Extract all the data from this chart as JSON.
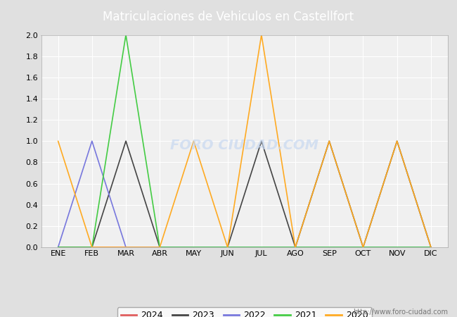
{
  "title": "Matriculaciones de Vehiculos en Castellfort",
  "months": [
    "ENE",
    "FEB",
    "MAR",
    "ABR",
    "MAY",
    "JUN",
    "JUL",
    "AGO",
    "SEP",
    "OCT",
    "NOV",
    "DIC"
  ],
  "series": {
    "2024": {
      "values": [
        0,
        0,
        0,
        0,
        0,
        null,
        null,
        null,
        null,
        null,
        null,
        null
      ],
      "color": "#e05c5c",
      "linewidth": 1.2
    },
    "2023": {
      "values": [
        0,
        0,
        1,
        0,
        0,
        0,
        1,
        0,
        1,
        0,
        1,
        0
      ],
      "color": "#444444",
      "linewidth": 1.2
    },
    "2022": {
      "values": [
        0,
        1,
        0,
        0,
        0,
        0,
        0,
        0,
        0,
        0,
        0,
        0
      ],
      "color": "#7777dd",
      "linewidth": 1.2
    },
    "2021": {
      "values": [
        0,
        0,
        2,
        0,
        0,
        0,
        0,
        0,
        0,
        0,
        0,
        0
      ],
      "color": "#44cc44",
      "linewidth": 1.2
    },
    "2020": {
      "values": [
        1,
        0,
        0,
        0,
        1,
        0,
        2,
        0,
        1,
        0,
        1,
        0
      ],
      "color": "#ffaa22",
      "linewidth": 1.2
    }
  },
  "ylim": [
    0,
    2.0
  ],
  "yticks": [
    0.0,
    0.2,
    0.4,
    0.6,
    0.8,
    1.0,
    1.2,
    1.4,
    1.6,
    1.8,
    2.0
  ],
  "outer_bg": "#e0e0e0",
  "plot_bg": "#f0f0f0",
  "title_bg_color": "#5b8ed6",
  "title_color": "white",
  "title_fontsize": 12,
  "grid_color": "#ffffff",
  "grid_linewidth": 0.8,
  "tick_fontsize": 8,
  "watermark_text": "FORO CIUDAD.COM",
  "url_text": "http://www.foro-ciudad.com",
  "legend_years": [
    "2024",
    "2023",
    "2022",
    "2021",
    "2020"
  ]
}
